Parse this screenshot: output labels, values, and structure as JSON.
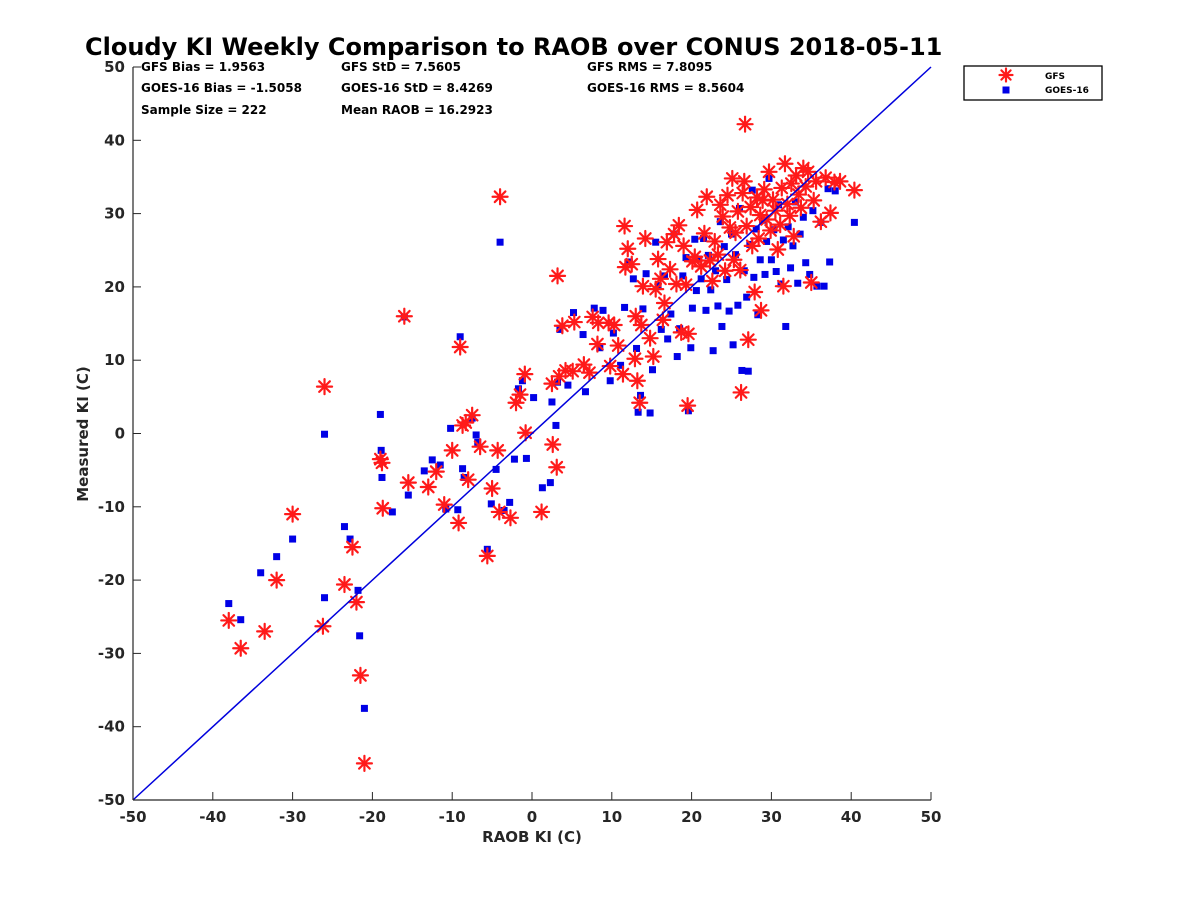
{
  "chart_data": {
    "type": "scatter",
    "title": "Cloudy KI Weekly Comparison to RAOB over CONUS 2018-05-11",
    "xlabel": "RAOB KI (C)",
    "ylabel": "Measured KI (C)",
    "xlim": [
      -50,
      50
    ],
    "ylim": [
      -50,
      50
    ],
    "xticks": [
      -50,
      -40,
      -30,
      -20,
      -10,
      0,
      10,
      20,
      30,
      40,
      50
    ],
    "yticks": [
      -50,
      -40,
      -30,
      -20,
      -10,
      0,
      10,
      20,
      30,
      40,
      50
    ],
    "legend_position": "top-right (outside plot)",
    "reference_line": {
      "name": "1:1 line",
      "color": "#0000dd"
    },
    "stats": [
      [
        "GFS Bias = 1.9563",
        "GFS StD = 7.5605",
        "GFS RMS = 7.8095"
      ],
      [
        "GOES-16 Bias = -1.5058",
        "GOES-16 StD = 8.4269",
        "GOES-16 RMS = 8.5604"
      ],
      [
        "Sample Size = 222",
        "Mean RAOB = 16.2923"
      ]
    ],
    "series": [
      {
        "name": "GFS",
        "marker": "asterisk",
        "color": "#ff1a1a",
        "points": [
          [
            -38,
            -25.5
          ],
          [
            -36.5,
            -29.3
          ],
          [
            -33.5,
            -27
          ],
          [
            -32,
            -20
          ],
          [
            -30,
            -11
          ],
          [
            -26,
            6.4
          ],
          [
            -26.2,
            -26.3
          ],
          [
            -23.5,
            -20.6
          ],
          [
            -22.5,
            -15.5
          ],
          [
            -22,
            -23
          ],
          [
            -21.5,
            -33
          ],
          [
            -21,
            -45
          ],
          [
            -19,
            -3.5
          ],
          [
            -18.8,
            -4
          ],
          [
            -18.7,
            -10.2
          ],
          [
            -16,
            16
          ],
          [
            -15.5,
            -6.7
          ],
          [
            -13,
            -7.3
          ],
          [
            -12,
            -5.2
          ],
          [
            -11,
            -9.7
          ],
          [
            -10,
            -2.3
          ],
          [
            -9.2,
            -12.2
          ],
          [
            -9,
            11.8
          ],
          [
            -8.7,
            1.1
          ],
          [
            -8.3,
            1.5
          ],
          [
            -8,
            -6.3
          ],
          [
            -7.5,
            2.5
          ],
          [
            -6.5,
            -1.8
          ],
          [
            -5.6,
            -16.7
          ],
          [
            -5,
            -7.5
          ],
          [
            -4.3,
            -2.3
          ],
          [
            -4.1,
            -10.7
          ],
          [
            -4,
            32.3
          ],
          [
            -2.7,
            -11.5
          ],
          [
            -2,
            4.2
          ],
          [
            -1.5,
            5.3
          ],
          [
            -0.9,
            8.1
          ],
          [
            -0.8,
            0.1
          ],
          [
            1.2,
            -10.7
          ],
          [
            2.5,
            6.8
          ],
          [
            2.6,
            -1.5
          ],
          [
            3.1,
            -4.6
          ],
          [
            3.2,
            21.5
          ],
          [
            3.4,
            7.8
          ],
          [
            3.8,
            14.7
          ],
          [
            4.2,
            8.6
          ],
          [
            5.1,
            8.5
          ],
          [
            5.3,
            15.2
          ],
          [
            6.5,
            9.4
          ],
          [
            7.2,
            8.3
          ],
          [
            7.6,
            15.9
          ],
          [
            8.2,
            12.2
          ],
          [
            8.3,
            15.1
          ],
          [
            9.6,
            15.1
          ],
          [
            9.8,
            9.2
          ],
          [
            10.3,
            14.8
          ],
          [
            10.8,
            12
          ],
          [
            11.4,
            8.1
          ],
          [
            11.6,
            28.3
          ],
          [
            11.7,
            22.7
          ],
          [
            12,
            25.2
          ],
          [
            12.5,
            23.1
          ],
          [
            12.9,
            10.2
          ],
          [
            13,
            16
          ],
          [
            13.2,
            7.2
          ],
          [
            13.5,
            4.2
          ],
          [
            13.7,
            14.8
          ],
          [
            13.9,
            20.1
          ],
          [
            14.2,
            26.6
          ],
          [
            14.8,
            13
          ],
          [
            15.2,
            10.5
          ],
          [
            15.5,
            19.7
          ],
          [
            15.8,
            23.8
          ],
          [
            16.1,
            21.1
          ],
          [
            16.4,
            15.5
          ],
          [
            16.6,
            17.8
          ],
          [
            16.9,
            26.1
          ],
          [
            17.3,
            22.4
          ],
          [
            17.8,
            27.2
          ],
          [
            18.1,
            20.4
          ],
          [
            18.4,
            28.4
          ],
          [
            18.7,
            13.8
          ],
          [
            19,
            25.6
          ],
          [
            19.3,
            20.3
          ],
          [
            19.5,
            3.8
          ],
          [
            19.6,
            13.6
          ],
          [
            20.1,
            23.5
          ],
          [
            20.4,
            24.1
          ],
          [
            20.7,
            30.5
          ],
          [
            21.2,
            22.8
          ],
          [
            21.6,
            27.3
          ],
          [
            21.9,
            32.3
          ],
          [
            22.3,
            23.6
          ],
          [
            22.6,
            20.8
          ],
          [
            22.9,
            26.2
          ],
          [
            23.3,
            24.4
          ],
          [
            23.6,
            31.2
          ],
          [
            23.9,
            29.6
          ],
          [
            24.2,
            22.2
          ],
          [
            24.5,
            32.5
          ],
          [
            24.8,
            28.1
          ],
          [
            25.1,
            34.8
          ],
          [
            25.3,
            23.7
          ],
          [
            25.5,
            27.4
          ],
          [
            25.8,
            30.3
          ],
          [
            26.1,
            22.3
          ],
          [
            26.2,
            5.6
          ],
          [
            26.4,
            32.8
          ],
          [
            26.6,
            34.4
          ],
          [
            26.7,
            42.2
          ],
          [
            26.9,
            28.3
          ],
          [
            27.1,
            12.8
          ],
          [
            27.4,
            30.9
          ],
          [
            27.6,
            25.6
          ],
          [
            27.9,
            19.3
          ],
          [
            28.2,
            32.2
          ],
          [
            28.4,
            26.6
          ],
          [
            28.6,
            29.8
          ],
          [
            28.7,
            16.8
          ],
          [
            28.9,
            31.8
          ],
          [
            29.1,
            33.3
          ],
          [
            29.4,
            29.2
          ],
          [
            29.7,
            35.7
          ],
          [
            29.9,
            27.7
          ],
          [
            30.2,
            31.9
          ],
          [
            30.5,
            30.4
          ],
          [
            30.8,
            25.1
          ],
          [
            31.1,
            28.5
          ],
          [
            31.3,
            33.5
          ],
          [
            31.5,
            20.1
          ],
          [
            31.7,
            36.8
          ],
          [
            32,
            31.3
          ],
          [
            32.3,
            29.7
          ],
          [
            32.5,
            34.1
          ],
          [
            32.8,
            26.9
          ],
          [
            33.1,
            35.2
          ],
          [
            33.4,
            32.6
          ],
          [
            33.7,
            30.8
          ],
          [
            34,
            36.2
          ],
          [
            34.3,
            33.7
          ],
          [
            34.6,
            35.7
          ],
          [
            35,
            20.6
          ],
          [
            35.3,
            31.8
          ],
          [
            35.6,
            34.4
          ],
          [
            36.2,
            28.9
          ],
          [
            36.8,
            34.9
          ],
          [
            37.4,
            30.1
          ],
          [
            37.9,
            34.3
          ],
          [
            38.6,
            34.4
          ],
          [
            40.4,
            33.2
          ]
        ]
      },
      {
        "name": "GOES-16",
        "marker": "square",
        "color": "#0000e6",
        "points": [
          [
            -38,
            -23.2
          ],
          [
            -36.5,
            -25.4
          ],
          [
            -34,
            -19
          ],
          [
            -32,
            -16.8
          ],
          [
            -30,
            -14.4
          ],
          [
            -26,
            -22.4
          ],
          [
            -26,
            -0.1
          ],
          [
            -23.5,
            -12.7
          ],
          [
            -22.8,
            -14.4
          ],
          [
            -21.8,
            -21.4
          ],
          [
            -21.6,
            -27.6
          ],
          [
            -21,
            -37.5
          ],
          [
            -19,
            2.6
          ],
          [
            -18.9,
            -2.3
          ],
          [
            -18.8,
            -6
          ],
          [
            -17.5,
            -10.7
          ],
          [
            -16,
            15.9
          ],
          [
            -15.5,
            -8.4
          ],
          [
            -13.5,
            -5.1
          ],
          [
            -12.5,
            -3.6
          ],
          [
            -11.5,
            -4.3
          ],
          [
            -10.8,
            -10.3
          ],
          [
            -10.2,
            0.7
          ],
          [
            -9.3,
            -10.4
          ],
          [
            -9,
            13.2
          ],
          [
            -8.7,
            -4.8
          ],
          [
            -8.5,
            -6
          ],
          [
            -7.5,
            2.1
          ],
          [
            -7,
            -0.2
          ],
          [
            -6.8,
            -1.2
          ],
          [
            -5.6,
            -15.8
          ],
          [
            -5.1,
            -9.6
          ],
          [
            -4.5,
            -4.9
          ],
          [
            -4,
            26.1
          ],
          [
            -3.5,
            -10.5
          ],
          [
            -2.8,
            -9.4
          ],
          [
            -2.2,
            -3.5
          ],
          [
            -1.7,
            6.1
          ],
          [
            -1.2,
            7.2
          ],
          [
            -0.7,
            -3.4
          ],
          [
            0.2,
            4.9
          ],
          [
            1.3,
            -7.4
          ],
          [
            2.3,
            -6.7
          ],
          [
            2.5,
            4.3
          ],
          [
            3,
            1.1
          ],
          [
            3.2,
            7
          ],
          [
            3.5,
            14.2
          ],
          [
            4.5,
            6.6
          ],
          [
            5.2,
            16.5
          ],
          [
            6.4,
            13.5
          ],
          [
            6.7,
            5.7
          ],
          [
            7.8,
            17.1
          ],
          [
            8.5,
            11.7
          ],
          [
            8.9,
            16.8
          ],
          [
            9.8,
            7.2
          ],
          [
            10.2,
            13.7
          ],
          [
            11.1,
            9.3
          ],
          [
            11.6,
            17.2
          ],
          [
            12.2,
            23.4
          ],
          [
            12.7,
            21.1
          ],
          [
            13.1,
            11.6
          ],
          [
            13.3,
            2.9
          ],
          [
            13.6,
            5.2
          ],
          [
            13.9,
            17
          ],
          [
            14.3,
            21.8
          ],
          [
            14.8,
            2.8
          ],
          [
            15.1,
            8.7
          ],
          [
            15.5,
            26.1
          ],
          [
            15.8,
            20.2
          ],
          [
            16.2,
            14.2
          ],
          [
            16.6,
            21.5
          ],
          [
            17,
            12.9
          ],
          [
            17.4,
            16.3
          ],
          [
            17.8,
            27.2
          ],
          [
            18.2,
            10.5
          ],
          [
            18.5,
            14.3
          ],
          [
            18.9,
            21.5
          ],
          [
            19.3,
            24
          ],
          [
            19.6,
            3.1
          ],
          [
            19.9,
            11.7
          ],
          [
            20.1,
            17.1
          ],
          [
            20.4,
            26.5
          ],
          [
            20.6,
            19.5
          ],
          [
            20.9,
            23.8
          ],
          [
            21.2,
            21.1
          ],
          [
            21.5,
            26.6
          ],
          [
            21.8,
            16.8
          ],
          [
            22.1,
            24.3
          ],
          [
            22.4,
            19.6
          ],
          [
            22.7,
            11.3
          ],
          [
            23,
            22.2
          ],
          [
            23.3,
            17.4
          ],
          [
            23.6,
            28.9
          ],
          [
            23.8,
            14.6
          ],
          [
            24.1,
            25.5
          ],
          [
            24.4,
            21
          ],
          [
            24.7,
            16.7
          ],
          [
            25,
            27.2
          ],
          [
            25.2,
            12.1
          ],
          [
            25.5,
            24.4
          ],
          [
            25.8,
            17.5
          ],
          [
            26,
            30.7
          ],
          [
            26.3,
            8.6
          ],
          [
            26.6,
            22.2
          ],
          [
            26.9,
            18.6
          ],
          [
            27.1,
            8.5
          ],
          [
            27.3,
            25.8
          ],
          [
            27.6,
            33.2
          ],
          [
            27.8,
            21.3
          ],
          [
            28.1,
            27.9
          ],
          [
            28.3,
            16.2
          ],
          [
            28.6,
            23.7
          ],
          [
            28.9,
            29.1
          ],
          [
            29.2,
            21.7
          ],
          [
            29.4,
            26.2
          ],
          [
            29.7,
            34.8
          ],
          [
            30,
            23.7
          ],
          [
            30.3,
            27.8
          ],
          [
            30.6,
            22.1
          ],
          [
            30.9,
            31.2
          ],
          [
            31.2,
            20.4
          ],
          [
            31.5,
            26.4
          ],
          [
            31.8,
            14.6
          ],
          [
            32.1,
            28.2
          ],
          [
            32.4,
            22.6
          ],
          [
            32.7,
            25.6
          ],
          [
            33,
            31.6
          ],
          [
            33.3,
            20.5
          ],
          [
            33.6,
            27.2
          ],
          [
            34,
            29.5
          ],
          [
            34.3,
            23.3
          ],
          [
            34.8,
            21.7
          ],
          [
            35.2,
            30.4
          ],
          [
            35.7,
            20.1
          ],
          [
            36.2,
            28.8
          ],
          [
            36.6,
            20.1
          ],
          [
            37.1,
            33.4
          ],
          [
            37.3,
            23.4
          ],
          [
            38,
            33.1
          ],
          [
            40.4,
            28.8
          ]
        ]
      }
    ]
  }
}
